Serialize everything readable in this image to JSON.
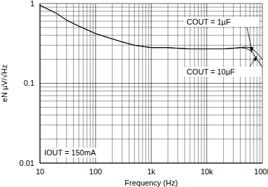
{
  "chart_data": {
    "type": "line",
    "x_label": "Frequency (Hz)",
    "y_label": "eN µV/√Hz",
    "x": [
      10,
      20,
      30,
      50,
      100,
      200,
      300,
      500,
      700,
      1000,
      2000,
      3000,
      5000,
      10000,
      20000,
      30000,
      40000,
      50000,
      60000,
      70000,
      80000,
      100000
    ],
    "series": [
      {
        "name": "COUT = 1µF",
        "color": "#000000",
        "values": [
          0.95,
          0.75,
          0.62,
          0.52,
          0.42,
          0.36,
          0.33,
          0.3,
          0.29,
          0.28,
          0.28,
          0.275,
          0.27,
          0.27,
          0.27,
          0.275,
          0.28,
          0.285,
          0.28,
          0.26,
          0.24,
          0.2
        ]
      },
      {
        "name": "COUT = 10µF",
        "color": "#000000",
        "values": [
          0.95,
          0.75,
          0.62,
          0.52,
          0.42,
          0.36,
          0.33,
          0.3,
          0.29,
          0.28,
          0.28,
          0.275,
          0.27,
          0.27,
          0.27,
          0.275,
          0.28,
          0.275,
          0.26,
          0.23,
          0.2,
          0.16
        ]
      }
    ],
    "annotations": [
      "COUT = 1µF",
      "COUT = 10µF",
      "IOUT = 150mA"
    ],
    "xlim": [
      10,
      100000
    ],
    "ylim": [
      0.01,
      1
    ],
    "xticks": [
      10,
      100,
      {
        "value": 1000,
        "label": "1k"
      },
      {
        "value": 10000,
        "label": "10k"
      },
      {
        "value": 100000,
        "label": "100k"
      }
    ],
    "yticks": [
      0.01,
      0.1,
      1
    ],
    "log": true,
    "grid": true,
    "legend": "none"
  }
}
